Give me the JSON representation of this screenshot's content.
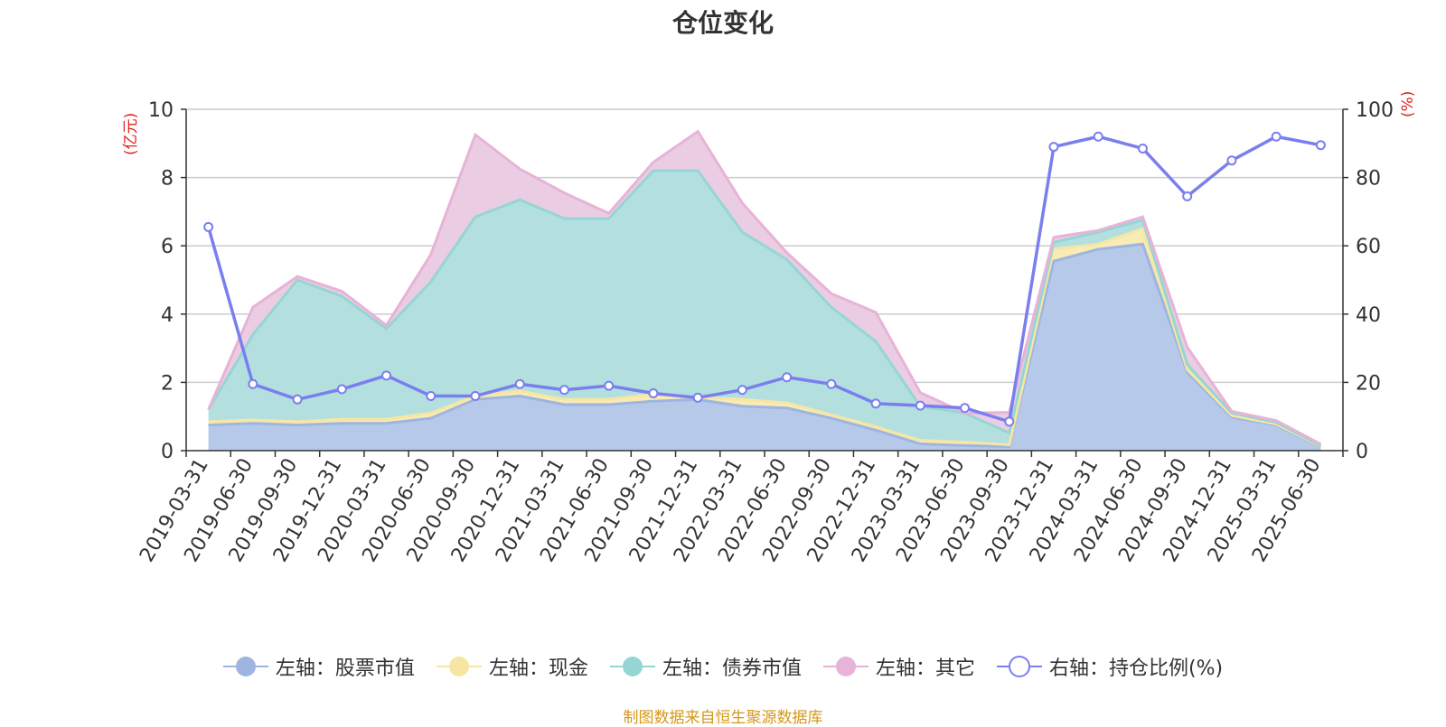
{
  "chart_data": {
    "type": "area",
    "title": "仓位变化",
    "left_axis_unit": "(亿元)",
    "right_axis_unit": "(%)",
    "left_ylim": [
      0,
      10
    ],
    "left_ticks": [
      "0",
      "2",
      "4",
      "6",
      "8",
      "10"
    ],
    "right_ylim": [
      0,
      100
    ],
    "right_ticks": [
      "0",
      "20",
      "40",
      "60",
      "80",
      "100"
    ],
    "grid": true,
    "legend_position": "bottom",
    "categories": [
      "2019-03-31",
      "2019-06-30",
      "2019-09-30",
      "2019-12-31",
      "2020-03-31",
      "2020-06-30",
      "2020-09-30",
      "2020-12-31",
      "2021-03-31",
      "2021-06-30",
      "2021-09-30",
      "2021-12-31",
      "2022-03-31",
      "2022-06-30",
      "2022-09-30",
      "2022-12-31",
      "2023-03-31",
      "2023-06-30",
      "2023-09-30",
      "2023-12-31",
      "2024-03-31",
      "2024-06-30",
      "2024-09-30",
      "2024-12-31",
      "2025-03-31",
      "2025-06-30"
    ],
    "stacked_series": [
      {
        "name": "左轴：股票市值",
        "axis": "left",
        "color": "#9db5e0",
        "fill": "#b6c9e9",
        "values": [
          0.75,
          0.8,
          0.75,
          0.8,
          0.8,
          0.95,
          1.5,
          1.6,
          1.35,
          1.35,
          1.45,
          1.5,
          1.3,
          1.25,
          0.95,
          0.6,
          0.2,
          0.15,
          0.12,
          5.55,
          5.9,
          6.05,
          2.3,
          0.98,
          0.75,
          0.1
        ]
      },
      {
        "name": "左轴：现金",
        "axis": "left",
        "color": "#f7e6a3",
        "fill": "#f8ebb5",
        "values": [
          0.1,
          0.1,
          0.1,
          0.12,
          0.12,
          0.15,
          0.1,
          0.15,
          0.15,
          0.15,
          0.2,
          0.05,
          0.2,
          0.15,
          0.1,
          0.1,
          0.1,
          0.1,
          0.05,
          0.35,
          0.15,
          0.45,
          0.08,
          0.05,
          0.03,
          0.02
        ]
      },
      {
        "name": "左轴：债券市值",
        "axis": "left",
        "color": "#95d6d4",
        "fill": "#b3e0df",
        "values": [
          0.35,
          2.5,
          4.15,
          3.6,
          2.65,
          3.85,
          5.25,
          5.6,
          5.3,
          5.3,
          6.55,
          6.65,
          4.9,
          4.2,
          3.15,
          2.5,
          1.0,
          0.85,
          0.35,
          0.2,
          0.35,
          0.25,
          0.15,
          0.07,
          0.05,
          0.02
        ]
      },
      {
        "name": "左轴：其它",
        "axis": "left",
        "color": "#e7b3d6",
        "fill": "#ebcde3",
        "values": [
          0.0,
          0.8,
          0.1,
          0.15,
          0.1,
          0.8,
          2.4,
          0.9,
          0.75,
          0.15,
          0.25,
          1.15,
          0.85,
          0.2,
          0.4,
          0.85,
          0.4,
          0.0,
          0.6,
          0.15,
          0.05,
          0.1,
          0.5,
          0.05,
          0.05,
          0.05
        ]
      }
    ],
    "line_series": [
      {
        "name": "右轴：持仓比例(%)",
        "axis": "right",
        "color": "#7a7fee",
        "values": [
          65.5,
          19.5,
          15.0,
          18.0,
          22.0,
          16.0,
          16.0,
          19.5,
          17.8,
          19.0,
          16.8,
          15.5,
          17.8,
          21.5,
          19.5,
          13.8,
          13.2,
          12.5,
          8.5,
          89.0,
          92.0,
          88.5,
          74.5,
          85.0,
          92.0,
          89.5
        ]
      }
    ]
  },
  "source_text": "制图数据来自恒生聚源数据库"
}
